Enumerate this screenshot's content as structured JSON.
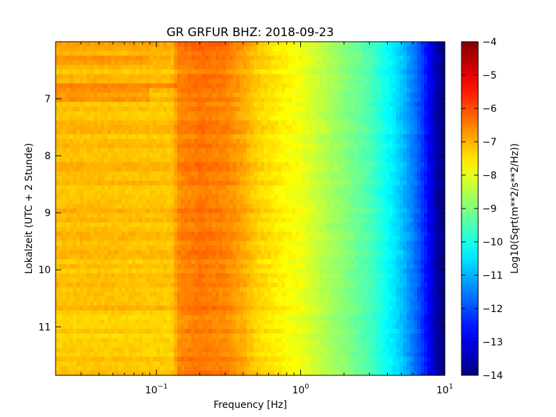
{
  "chart_data": {
    "type": "heatmap",
    "title": "GR GRFUR BHZ: 2018-09-23",
    "xlabel": "Frequency [Hz]",
    "ylabel": "Lokalzeit (UTC + 2 Stunde)",
    "colorbar_label": "Log10(Sqrt(m**2/s**2/Hz))",
    "x_scale": "log",
    "xlim": [
      0.02,
      10
    ],
    "ylim": [
      11.85,
      6.0
    ],
    "y_inverted": true,
    "x_ticks": [
      {
        "value": 0.1,
        "base": "10",
        "exp": "−1"
      },
      {
        "value": 1,
        "base": "10",
        "exp": "0"
      },
      {
        "value": 10,
        "base": "10",
        "exp": "1"
      }
    ],
    "y_ticks": [
      {
        "value": 7,
        "label": "7"
      },
      {
        "value": 8,
        "label": "8"
      },
      {
        "value": 9,
        "label": "9"
      },
      {
        "value": 10,
        "label": "10"
      },
      {
        "value": 11,
        "label": "11"
      }
    ],
    "colorbar": {
      "colormap": "jet",
      "vmin": -14,
      "vmax": -4,
      "ticks": [
        {
          "value": -4,
          "label": "−4"
        },
        {
          "value": -5,
          "label": "−5"
        },
        {
          "value": -6,
          "label": "−6"
        },
        {
          "value": -7,
          "label": "−7"
        },
        {
          "value": -8,
          "label": "−8"
        },
        {
          "value": -9,
          "label": "−9"
        },
        {
          "value": -10,
          "label": "−10"
        },
        {
          "value": -11,
          "label": "−11"
        },
        {
          "value": -12,
          "label": "−12"
        },
        {
          "value": -13,
          "label": "−13"
        },
        {
          "value": -14,
          "label": "−14"
        }
      ]
    },
    "spectrum_profile": [
      {
        "freq": 0.02,
        "value": -7.1
      },
      {
        "freq": 0.04,
        "value": -7.1
      },
      {
        "freq": 0.08,
        "value": -7.15
      },
      {
        "freq": 0.13,
        "value": -7.15
      },
      {
        "freq": 0.14,
        "value": -6.6
      },
      {
        "freq": 0.2,
        "value": -6.4
      },
      {
        "freq": 0.3,
        "value": -6.55
      },
      {
        "freq": 0.4,
        "value": -6.9
      },
      {
        "freq": 0.5,
        "value": -7.3
      },
      {
        "freq": 0.7,
        "value": -7.6
      },
      {
        "freq": 1.0,
        "value": -7.9
      },
      {
        "freq": 1.3,
        "value": -8.3
      },
      {
        "freq": 2.0,
        "value": -8.9
      },
      {
        "freq": 3.0,
        "value": -9.5
      },
      {
        "freq": 4.0,
        "value": -10.2
      },
      {
        "freq": 5.0,
        "value": -10.8
      },
      {
        "freq": 6.0,
        "value": -11.5
      },
      {
        "freq": 7.0,
        "value": -12.2
      },
      {
        "freq": 8.0,
        "value": -13.0
      },
      {
        "freq": 9.0,
        "value": -13.7
      },
      {
        "freq": 10.0,
        "value": -14.0
      }
    ],
    "time_variations": [
      {
        "t_start": 6.0,
        "t_end": 6.15,
        "f_max": 0.5,
        "delta": 0.25
      },
      {
        "t_start": 6.25,
        "t_end": 6.42,
        "f_max": 0.09,
        "delta": 0.25
      },
      {
        "t_start": 6.7,
        "t_end": 6.85,
        "f_max": 0.14,
        "delta": 0.45
      },
      {
        "t_start": 6.85,
        "t_end": 7.05,
        "f_max": 0.09,
        "delta": 0.35
      },
      {
        "t_start": 10.75,
        "t_end": 11.85,
        "f_max": 0.14,
        "delta": -0.1
      }
    ]
  }
}
